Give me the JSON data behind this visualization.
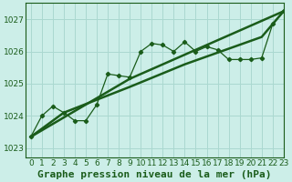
{
  "title": "Graphe pression niveau de la mer (hPa)",
  "bg_color": "#cceee8",
  "grid_color": "#aad8d0",
  "line_color": "#1a5c1a",
  "marker_color": "#1a5c1a",
  "xlim": [
    -0.5,
    23
  ],
  "ylim": [
    1022.7,
    1027.5
  ],
  "xticks": [
    0,
    1,
    2,
    3,
    4,
    5,
    6,
    7,
    8,
    9,
    10,
    11,
    12,
    13,
    14,
    15,
    16,
    17,
    18,
    19,
    20,
    21,
    22,
    23
  ],
  "yticks": [
    1023,
    1024,
    1025,
    1026,
    1027
  ],
  "series1_x": [
    0,
    1,
    2,
    3,
    4,
    5,
    6,
    7,
    8,
    9,
    10,
    11,
    12,
    13,
    14,
    15,
    16,
    17,
    18,
    19,
    20,
    21,
    22,
    23
  ],
  "series1_y": [
    1023.35,
    1024.0,
    1024.3,
    1024.1,
    1023.85,
    1023.85,
    1024.35,
    1025.3,
    1025.25,
    1025.2,
    1026.0,
    1026.25,
    1026.2,
    1026.0,
    1026.3,
    1026.0,
    1026.15,
    1026.05,
    1025.75,
    1025.75,
    1025.75,
    1025.8,
    1026.85,
    1027.25
  ],
  "series2_x": [
    0,
    9,
    23
  ],
  "series2_y": [
    1023.35,
    1025.15,
    1027.25
  ],
  "series3_x": [
    0,
    3,
    9,
    14,
    21,
    23
  ],
  "series3_y": [
    1023.35,
    1024.1,
    1024.9,
    1025.6,
    1026.45,
    1027.25
  ],
  "title_fontsize": 8,
  "tick_fontsize": 6.5
}
